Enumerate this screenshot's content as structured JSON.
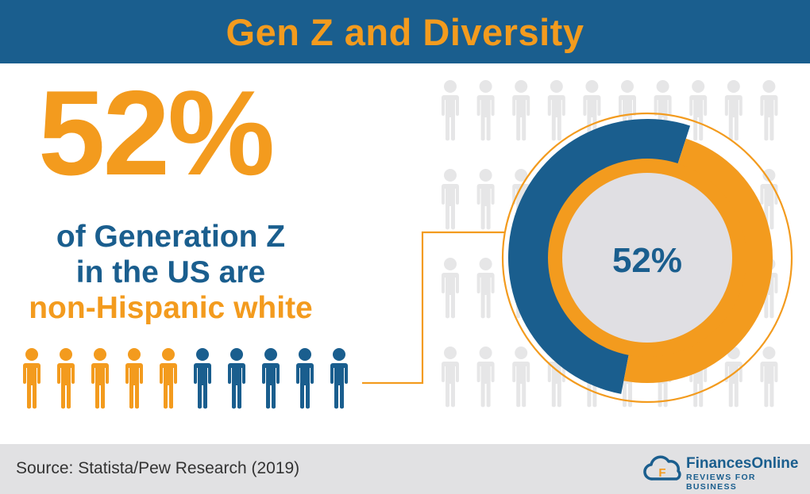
{
  "title": "Gen Z and Diversity",
  "headline_value": "52%",
  "description": {
    "line1": "of Generation Z",
    "line2": "in the US are",
    "line3": "non-Hispanic white"
  },
  "source": "Source: Statista/Pew Research (2019)",
  "brand": {
    "name": "FinancesOnline",
    "tagline": "REVIEWS FOR BUSINESS"
  },
  "colors": {
    "blue": "#1a5e8e",
    "orange": "#f39b1e",
    "light_gray": "#e6e6e7",
    "footer_gray": "#e1e1e3"
  },
  "chart_data": [
    {
      "type": "pie",
      "variant": "donut",
      "center_label": "52%",
      "slices": [
        {
          "value": 52,
          "color": "#1a5e8e"
        },
        {
          "value": 48,
          "color": "#f39b1e"
        }
      ]
    },
    {
      "type": "pictogram",
      "total_icons": 10,
      "filled_value": 5.2,
      "filled_color": "#f39b1e",
      "rest_color": "#1a5e8e"
    }
  ]
}
